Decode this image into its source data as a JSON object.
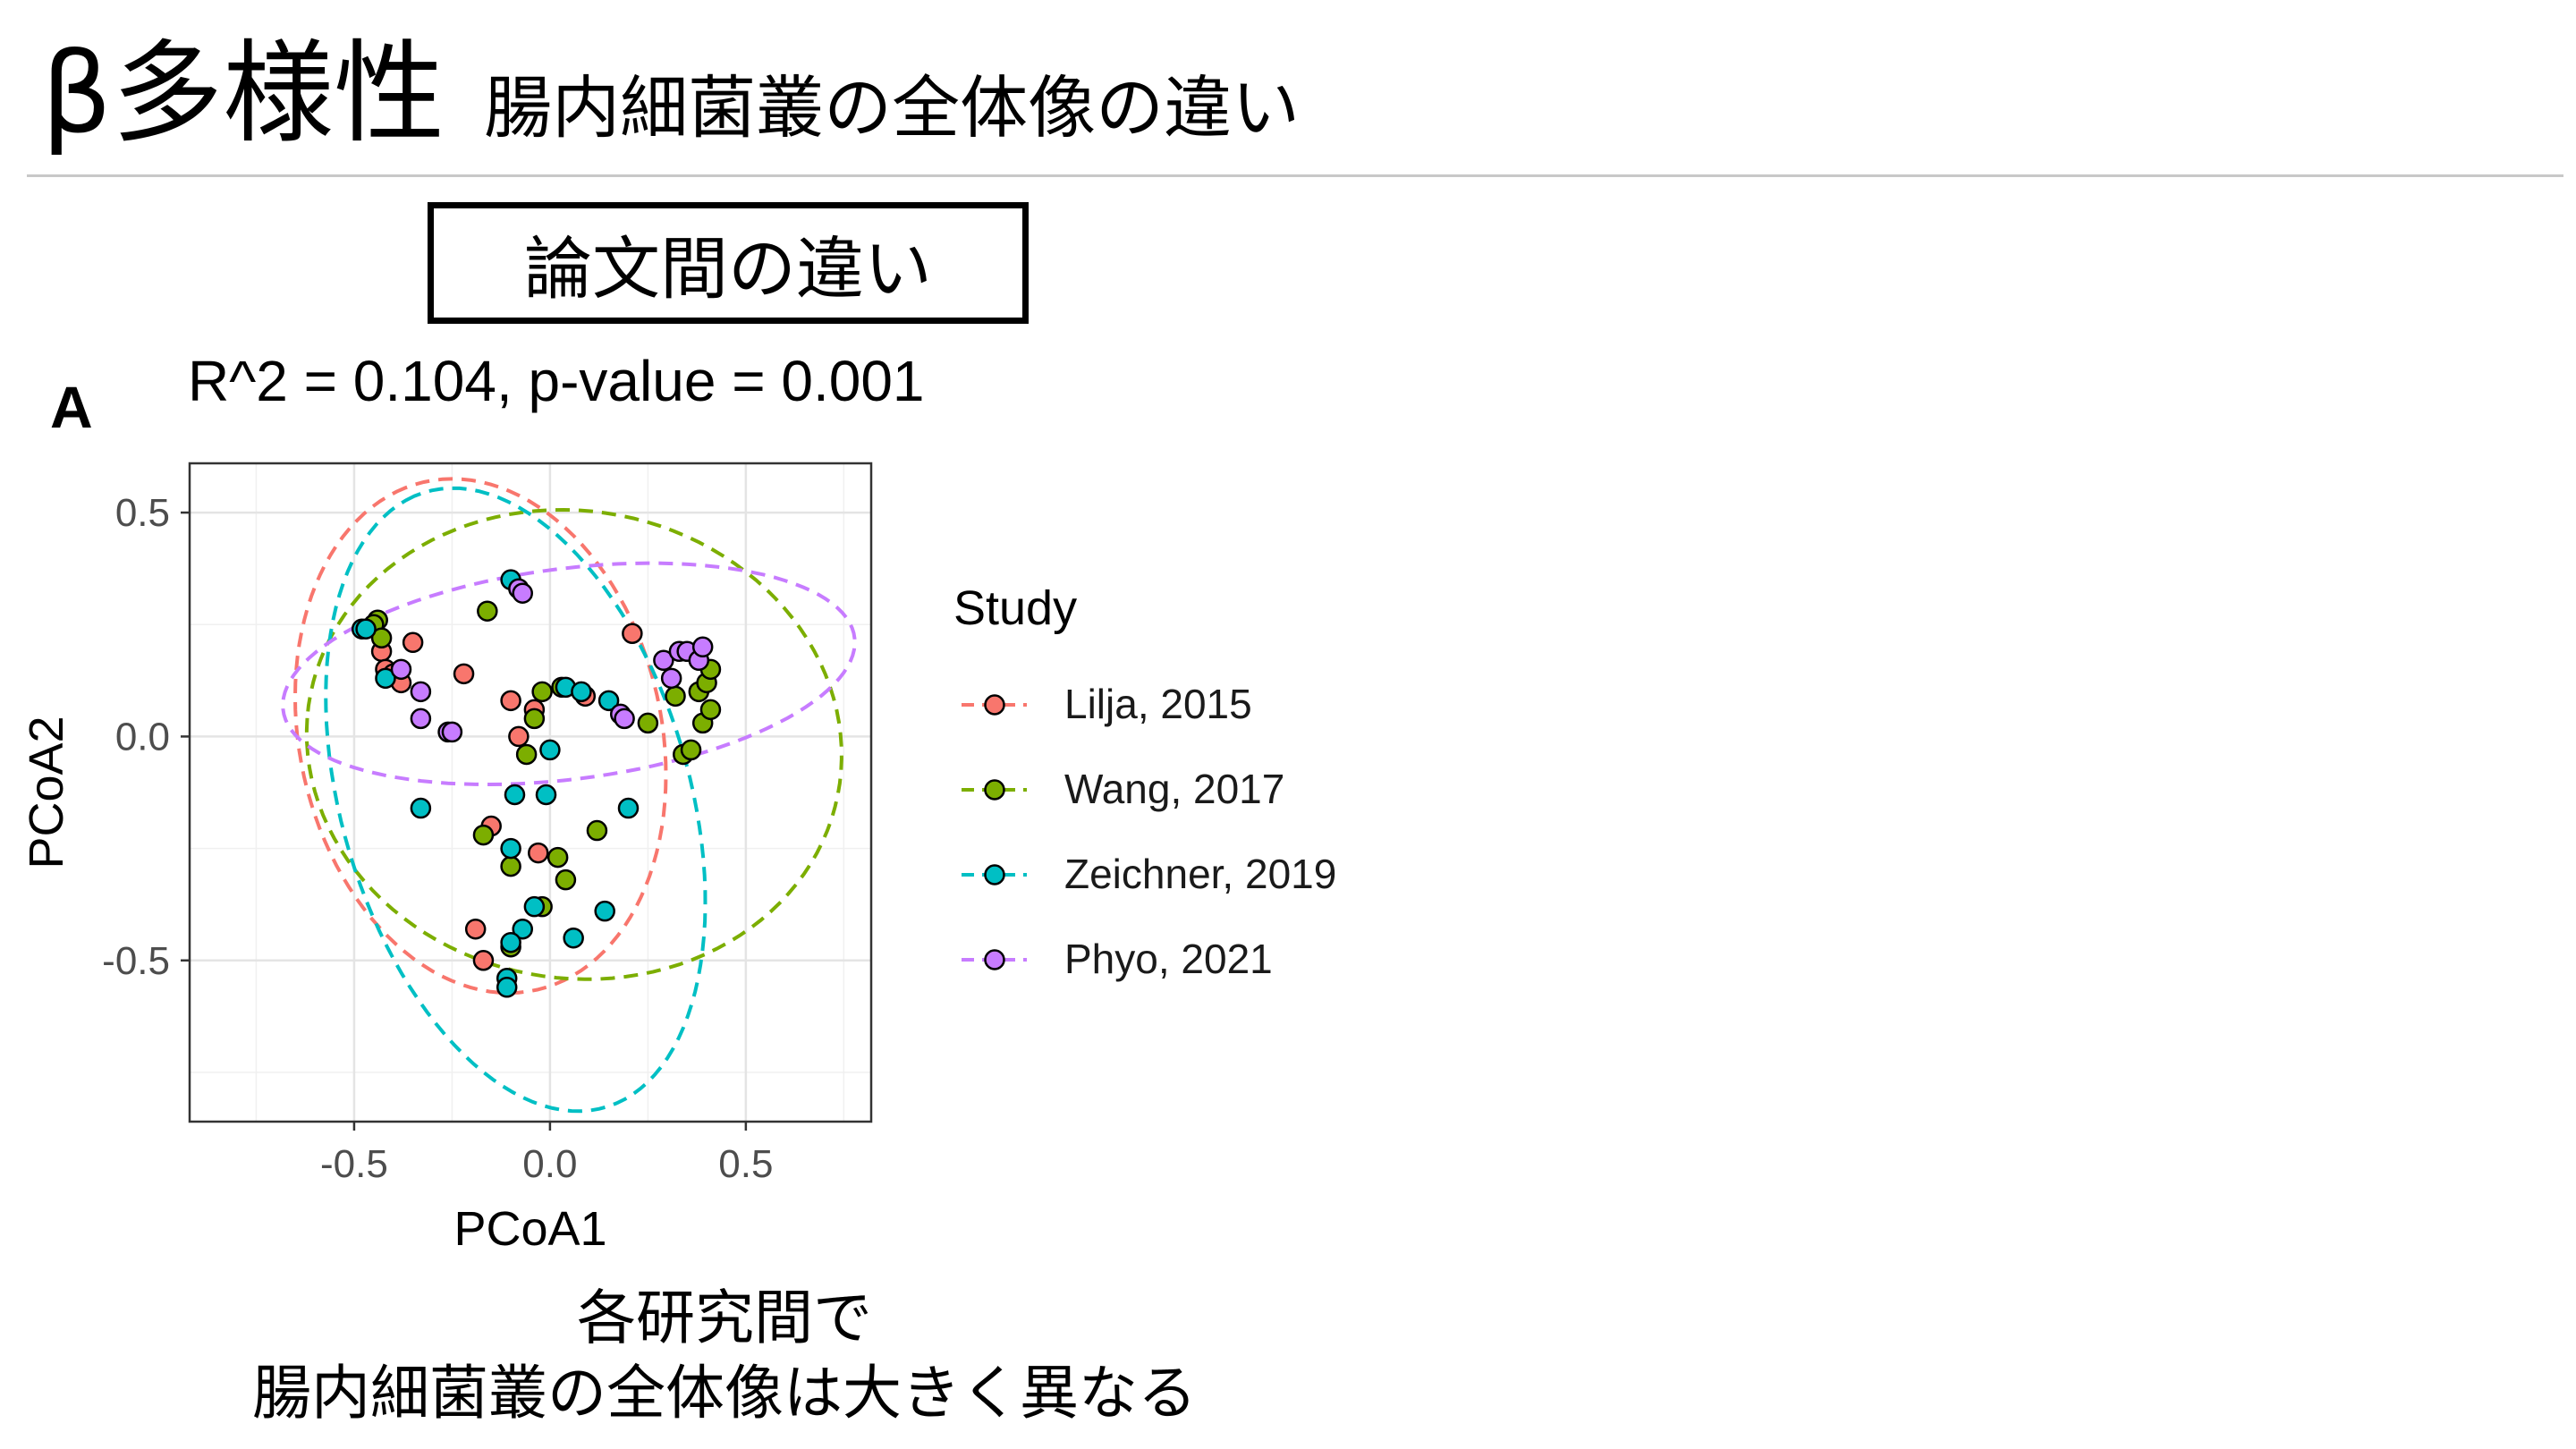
{
  "header": {
    "title_main": "β多様性",
    "title_sub": "腸内細菌叢の全体像の違い"
  },
  "section_label": "論文間の違い",
  "caption": {
    "line1": "各研究間で",
    "line2": "腸内細菌叢の全体像は大きく異なる"
  },
  "chart_data": {
    "type": "scatter",
    "panel_tag": "A",
    "title": "R^2 = 0.104, p-value = 0.001",
    "xlabel": "PCoA1",
    "ylabel": "PCoA2",
    "xlim": [
      -0.92,
      0.82
    ],
    "ylim": [
      -0.86,
      0.61
    ],
    "x_ticks": [
      -0.5,
      0.0,
      0.5
    ],
    "x_tick_labels": [
      "-0.5",
      "0.0",
      "0.5"
    ],
    "y_ticks": [
      -0.5,
      0.0,
      0.5
    ],
    "y_tick_labels": [
      "-0.5",
      "0.0",
      "0.5"
    ],
    "grid": true,
    "ellipses": true,
    "legend": {
      "title": "Study",
      "placement": "right"
    },
    "series": [
      {
        "name": "Lilja, 2015",
        "color": "#F8766D",
        "points": [
          [
            -0.43,
            0.19
          ],
          [
            -0.42,
            0.15
          ],
          [
            -0.4,
            0.14
          ],
          [
            -0.38,
            0.12
          ],
          [
            -0.35,
            0.21
          ],
          [
            -0.22,
            0.14
          ],
          [
            -0.1,
            0.08
          ],
          [
            -0.08,
            0.0
          ],
          [
            -0.04,
            0.06
          ],
          [
            0.09,
            0.09
          ],
          [
            0.21,
            0.23
          ],
          [
            -0.15,
            -0.2
          ],
          [
            -0.03,
            -0.26
          ],
          [
            -0.19,
            -0.43
          ],
          [
            -0.17,
            -0.5
          ]
        ]
      },
      {
        "name": "Wang, 2017",
        "color": "#7CAE00",
        "points": [
          [
            -0.44,
            0.26
          ],
          [
            -0.45,
            0.25
          ],
          [
            -0.43,
            0.22
          ],
          [
            -0.16,
            0.28
          ],
          [
            -0.02,
            0.1
          ],
          [
            0.03,
            0.11
          ],
          [
            -0.04,
            0.04
          ],
          [
            -0.06,
            -0.04
          ],
          [
            0.25,
            0.03
          ],
          [
            0.32,
            0.09
          ],
          [
            0.38,
            0.1
          ],
          [
            0.4,
            0.12
          ],
          [
            0.41,
            0.15
          ],
          [
            0.39,
            0.03
          ],
          [
            0.41,
            0.06
          ],
          [
            0.34,
            -0.04
          ],
          [
            0.36,
            -0.03
          ],
          [
            -0.17,
            -0.22
          ],
          [
            -0.1,
            -0.29
          ],
          [
            0.02,
            -0.27
          ],
          [
            0.04,
            -0.32
          ],
          [
            0.12,
            -0.21
          ],
          [
            -0.02,
            -0.38
          ],
          [
            -0.1,
            -0.47
          ]
        ]
      },
      {
        "name": "Zeichner, 2019",
        "color": "#00BFC4",
        "points": [
          [
            -0.48,
            0.24
          ],
          [
            -0.47,
            0.24
          ],
          [
            -0.42,
            0.13
          ],
          [
            -0.1,
            0.35
          ],
          [
            0.04,
            0.11
          ],
          [
            0.08,
            0.1
          ],
          [
            0.15,
            0.08
          ],
          [
            0.0,
            -0.03
          ],
          [
            -0.09,
            -0.13
          ],
          [
            -0.01,
            -0.13
          ],
          [
            0.2,
            -0.16
          ],
          [
            -0.33,
            -0.16
          ],
          [
            -0.1,
            -0.25
          ],
          [
            -0.04,
            -0.38
          ],
          [
            -0.07,
            -0.43
          ],
          [
            -0.1,
            -0.46
          ],
          [
            0.06,
            -0.45
          ],
          [
            0.14,
            -0.39
          ],
          [
            -0.11,
            -0.54
          ],
          [
            -0.11,
            -0.56
          ]
        ]
      },
      {
        "name": "Phyo, 2021",
        "color": "#C77CFF",
        "points": [
          [
            -0.08,
            0.33
          ],
          [
            -0.07,
            0.32
          ],
          [
            -0.38,
            0.15
          ],
          [
            -0.33,
            0.1
          ],
          [
            -0.33,
            0.04
          ],
          [
            -0.26,
            0.01
          ],
          [
            -0.25,
            0.01
          ],
          [
            0.18,
            0.05
          ],
          [
            0.19,
            0.04
          ],
          [
            0.29,
            0.17
          ],
          [
            0.31,
            0.13
          ],
          [
            0.33,
            0.19
          ],
          [
            0.35,
            0.19
          ],
          [
            0.38,
            0.17
          ],
          [
            0.39,
            0.2
          ]
        ]
      }
    ]
  }
}
